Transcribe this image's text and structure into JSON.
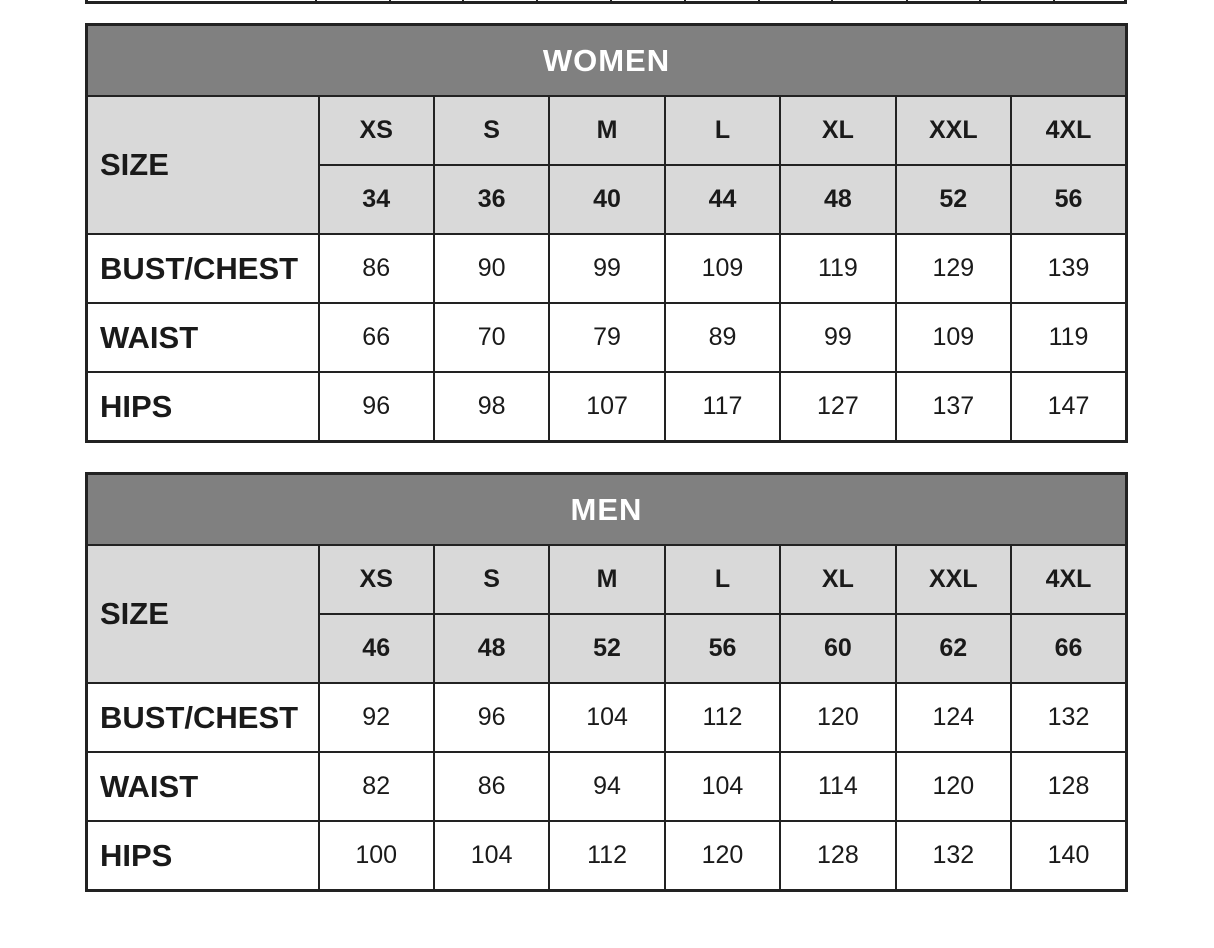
{
  "tables": [
    {
      "title": "WOMEN",
      "size_label": "SIZE",
      "sizes": [
        "XS",
        "S",
        "M",
        "L",
        "XL",
        "XXL",
        "4XL"
      ],
      "eu_sizes": [
        "34",
        "36",
        "40",
        "44",
        "48",
        "52",
        "56"
      ],
      "rows": [
        {
          "label": "BUST/CHEST",
          "values": [
            "86",
            "90",
            "99",
            "109",
            "119",
            "129",
            "139"
          ]
        },
        {
          "label": "WAIST",
          "values": [
            "66",
            "70",
            "79",
            "89",
            "99",
            "109",
            "119"
          ]
        },
        {
          "label": "HIPS",
          "values": [
            "96",
            "98",
            "107",
            "117",
            "127",
            "137",
            "147"
          ]
        }
      ]
    },
    {
      "title": "MEN",
      "size_label": "SIZE",
      "sizes": [
        "XS",
        "S",
        "M",
        "L",
        "XL",
        "XXL",
        "4XL"
      ],
      "eu_sizes": [
        "46",
        "48",
        "52",
        "56",
        "60",
        "62",
        "66"
      ],
      "rows": [
        {
          "label": "BUST/CHEST",
          "values": [
            "92",
            "96",
            "104",
            "112",
            "120",
            "124",
            "132"
          ]
        },
        {
          "label": "WAIST",
          "values": [
            "82",
            "86",
            "94",
            "104",
            "114",
            "120",
            "128"
          ]
        },
        {
          "label": "HIPS",
          "values": [
            "100",
            "104",
            "112",
            "120",
            "128",
            "132",
            "140"
          ]
        }
      ]
    }
  ]
}
